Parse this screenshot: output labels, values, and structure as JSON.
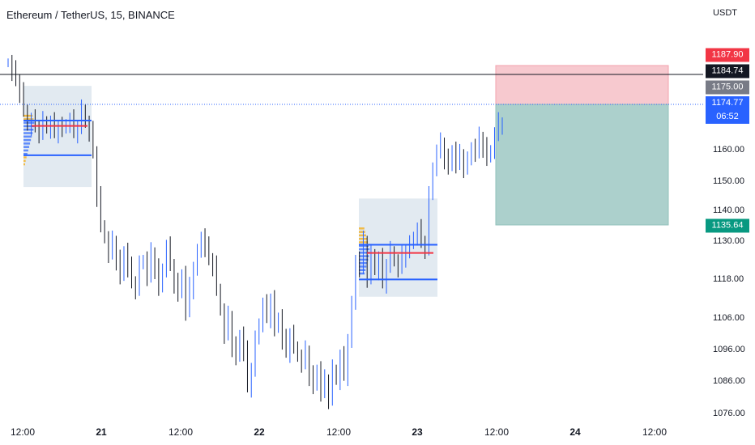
{
  "header": {
    "symbol_title": "Ethereum / TetherUS, 15, BINANCE",
    "currency": "USDT"
  },
  "price_axis": {
    "labels": [
      "1160.00",
      "1150.00",
      "1140.00",
      "1130.00",
      "1118.00",
      "1106.00",
      "1096.00",
      "1086.00",
      "1076.00"
    ],
    "badges": {
      "stop": {
        "text": "1187.90",
        "color": "#f23645"
      },
      "last": {
        "text": "1184.74",
        "color": "#131722"
      },
      "entry": {
        "text": "1175.00",
        "color": "#787b86"
      },
      "current": {
        "price": "1174.77",
        "countdown": "06:52",
        "color": "#2962ff"
      },
      "target": {
        "text": "1135.64",
        "color": "#089981"
      }
    }
  },
  "time_axis": {
    "labels": [
      {
        "text": "12:00",
        "bold": false
      },
      {
        "text": "21",
        "bold": true
      },
      {
        "text": "12:00",
        "bold": false
      },
      {
        "text": "22",
        "bold": true
      },
      {
        "text": "12:00",
        "bold": false
      },
      {
        "text": "23",
        "bold": true
      },
      {
        "text": "12:00",
        "bold": false
      },
      {
        "text": "24",
        "bold": true
      },
      {
        "text": "12:00",
        "bold": false
      }
    ]
  },
  "chart_data": {
    "type": "candlestick",
    "price_range": [
      1076,
      1197
    ],
    "candle_color": "#131722",
    "wick_up_color": "#2962ff",
    "closes": [
      1196,
      1193,
      1190,
      1186,
      1180,
      1174,
      1176,
      1174,
      1172,
      1176,
      1173,
      1175,
      1172,
      1174,
      1173,
      1175,
      1176,
      1172,
      1174,
      1180,
      1175,
      1172,
      1165,
      1150,
      1140,
      1135,
      1130,
      1134,
      1128,
      1122,
      1131,
      1125,
      1120,
      1118,
      1126,
      1128,
      1122,
      1130,
      1125,
      1118,
      1125,
      1132,
      1126,
      1120,
      1116,
      1123,
      1110,
      1118,
      1125,
      1130,
      1136,
      1132,
      1128,
      1126,
      1118,
      1110,
      1102,
      1108,
      1098,
      1094,
      1102,
      1096,
      1084,
      1090,
      1100,
      1106,
      1112,
      1108,
      1114,
      1104,
      1108,
      1100,
      1096,
      1102,
      1098,
      1094,
      1092,
      1096,
      1088,
      1084,
      1090,
      1082,
      1086,
      1080,
      1090,
      1086,
      1094,
      1088,
      1100,
      1112,
      1128,
      1125,
      1134,
      1122,
      1130,
      1124,
      1128,
      1120,
      1126,
      1131,
      1127,
      1125,
      1129,
      1131,
      1133,
      1136,
      1138,
      1134,
      1132,
      1150,
      1160,
      1165,
      1168,
      1163,
      1160,
      1166,
      1161,
      1164,
      1160,
      1162,
      1167,
      1165,
      1170,
      1167,
      1163,
      1166,
      1171,
      1175,
      1175
    ],
    "value_areas": [
      {
        "poc": 1175,
        "vah": 1176,
        "val": 1164,
        "box_top": 1188,
        "box_bottom": 1153
      },
      {
        "poc": 1131,
        "vah": 1133,
        "val": 1121,
        "box_top": 1149,
        "box_bottom": 1115
      }
    ],
    "position": {
      "type": "short",
      "entry": 1175.0,
      "stop": 1187.9,
      "target": 1135.64
    },
    "last_price": 1184.74
  }
}
